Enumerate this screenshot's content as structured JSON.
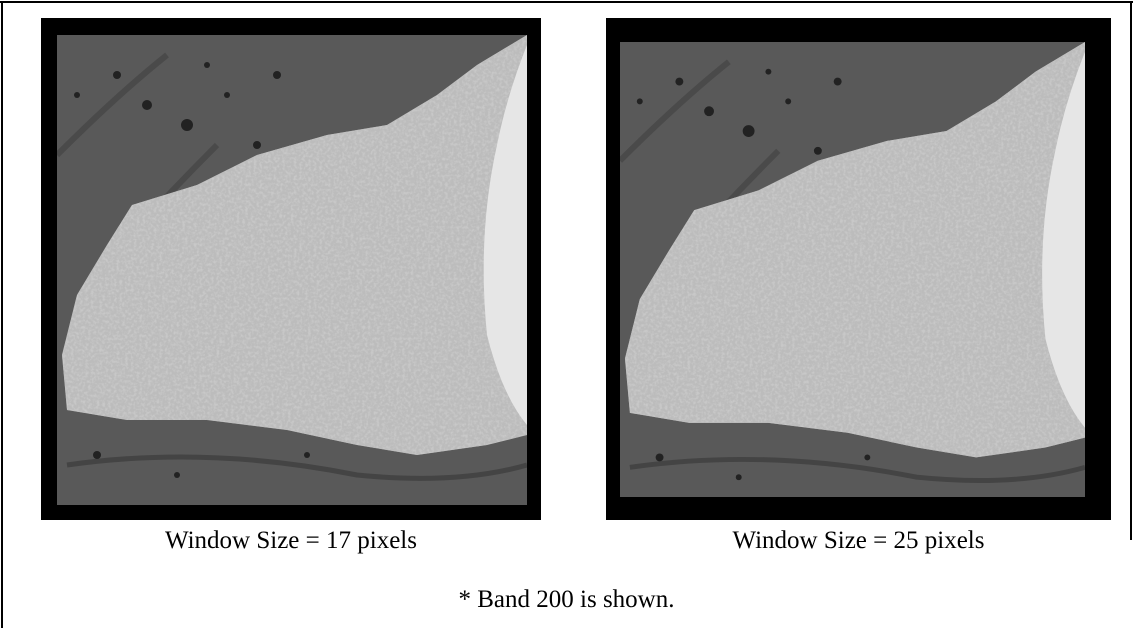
{
  "figure": {
    "panels": [
      {
        "caption": "Window Size = 17 pixels"
      },
      {
        "caption": "Window Size = 25 pixels"
      }
    ],
    "note": "* Band 200 is shown."
  }
}
